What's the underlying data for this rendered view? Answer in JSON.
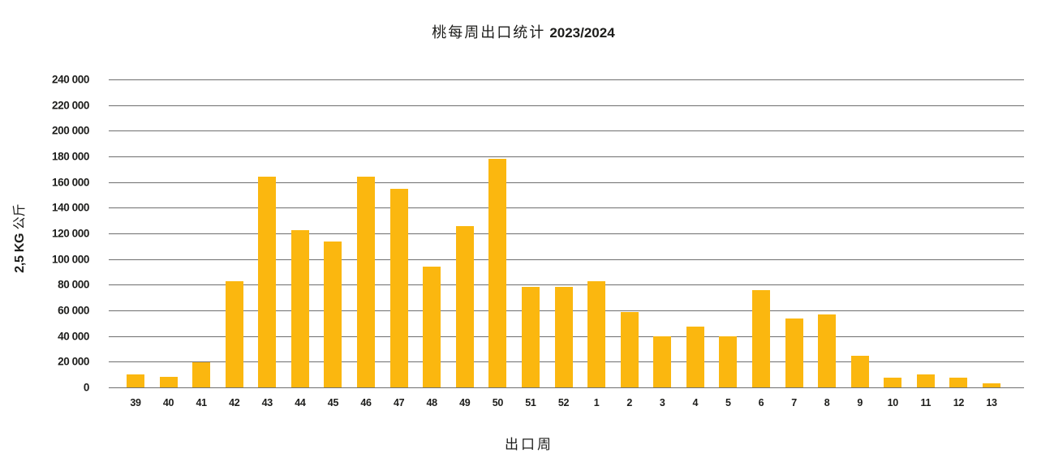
{
  "title": {
    "cjk": "桃每周出口统计",
    "season": "2023/2024"
  },
  "y_axis": {
    "label_num": "2,5 KG",
    "label_cjk": "公斤"
  },
  "x_axis": {
    "label": "出口周"
  },
  "chart_data": {
    "type": "bar",
    "title": "桃每周出口统计 2023/2024",
    "xlabel": "出口周",
    "ylabel": "2,5 KG 公斤",
    "categories": [
      "39",
      "40",
      "41",
      "42",
      "43",
      "44",
      "45",
      "46",
      "47",
      "48",
      "49",
      "50",
      "51",
      "52",
      "1",
      "2",
      "3",
      "4",
      "5",
      "6",
      "7",
      "8",
      "9",
      "10",
      "11",
      "12",
      "13"
    ],
    "values": [
      10000,
      8500,
      19500,
      83000,
      164000,
      122500,
      113500,
      164000,
      155000,
      94000,
      126000,
      178000,
      78500,
      78500,
      83000,
      58500,
      39500,
      47500,
      39500,
      76000,
      53500,
      57000,
      24500,
      7500,
      10000,
      7500,
      3000
    ],
    "ylim": [
      0,
      240000
    ],
    "ytick_step": 20000,
    "grid": true,
    "legend": "none",
    "bar_color": "#FBB70F",
    "gridline_color": "#6E6E6E",
    "text_color": "#1D1D1B"
  }
}
